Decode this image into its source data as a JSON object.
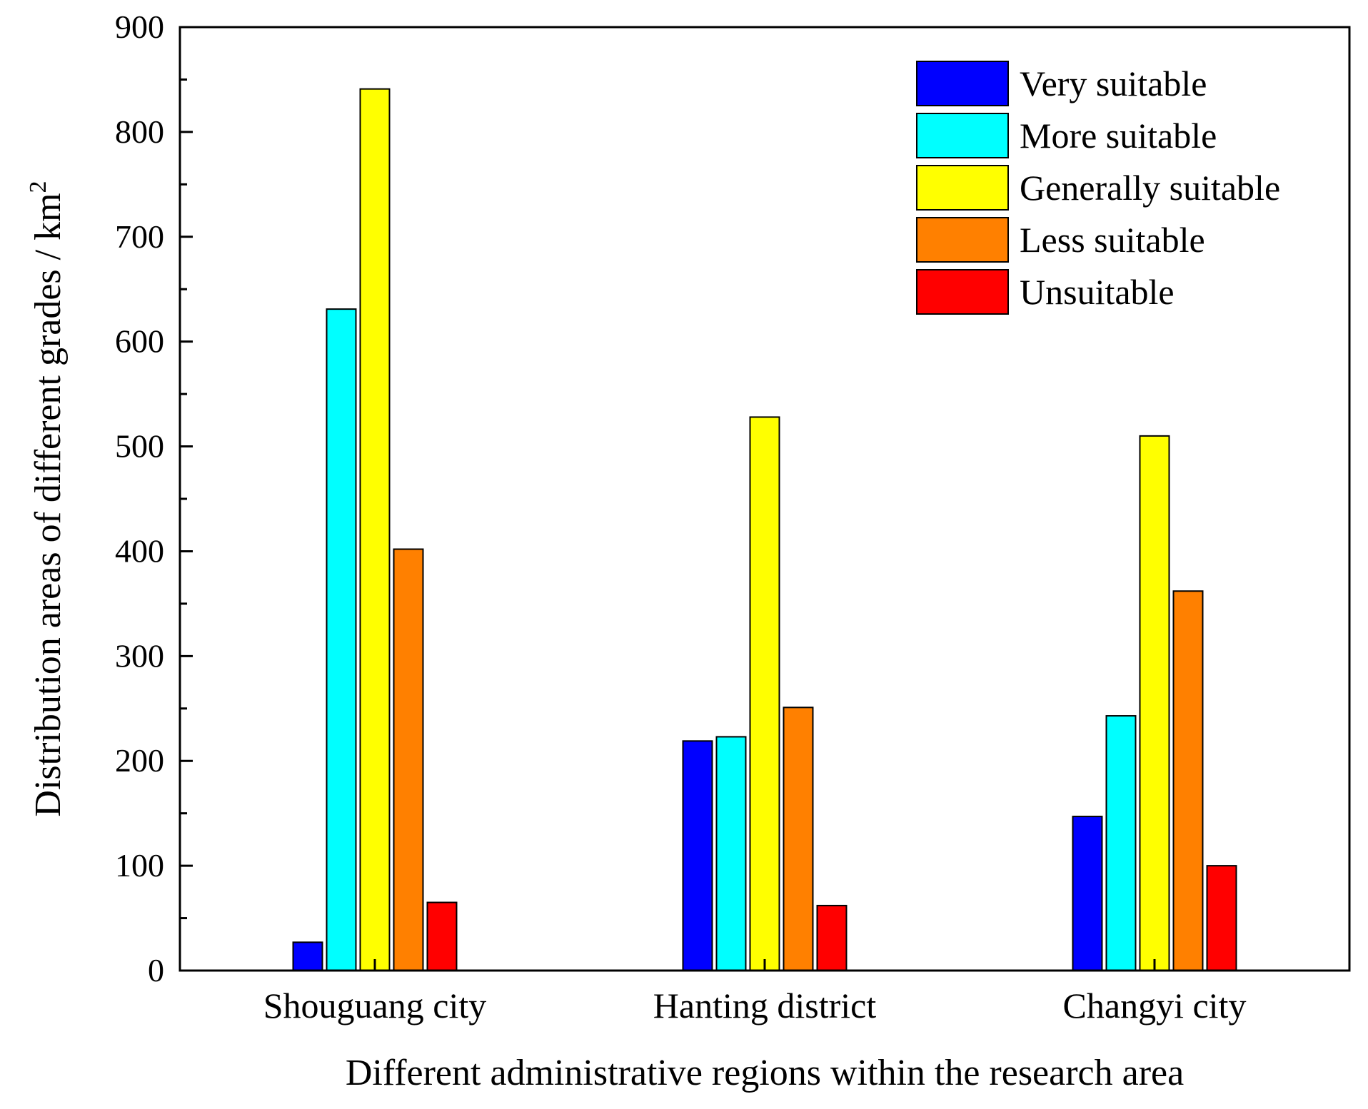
{
  "chart_data": {
    "type": "bar",
    "title": "",
    "xlabel": "Different administrative regions within the research area",
    "ylabel_main": "Distribution areas of different grades / km",
    "ylabel_sup": "2",
    "ylim": [
      0,
      900
    ],
    "yticks": [
      0,
      100,
      200,
      300,
      400,
      500,
      600,
      700,
      800,
      900
    ],
    "ytick_labels": [
      "0",
      "100",
      "200",
      "300",
      "400",
      "500",
      "600",
      "700",
      "800",
      "900"
    ],
    "categories": [
      "Shouguang city",
      "Hanting district",
      "Changyi city"
    ],
    "legend_position": "top-right",
    "grid": false,
    "series": [
      {
        "name": "Very suitable",
        "color": "#0000ff",
        "values": [
          27,
          219,
          147
        ]
      },
      {
        "name": "More suitable",
        "color": "#00ffff",
        "values": [
          631,
          223,
          243
        ]
      },
      {
        "name": "Generally suitable",
        "color": "#ffff00",
        "values": [
          841,
          528,
          510
        ]
      },
      {
        "name": "Less suitable",
        "color": "#ff8000",
        "values": [
          402,
          251,
          362
        ]
      },
      {
        "name": "Unsuitable",
        "color": "#ff0000",
        "values": [
          65,
          62,
          100
        ]
      }
    ]
  }
}
